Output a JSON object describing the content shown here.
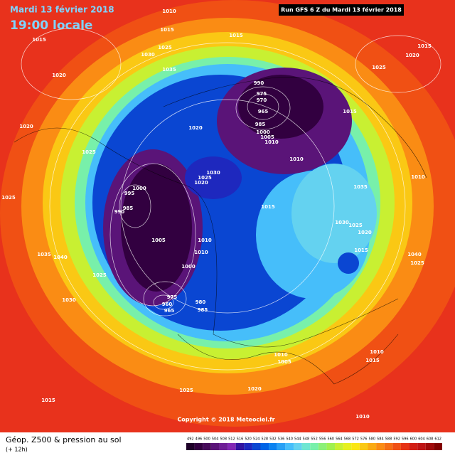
{
  "header": {
    "date": "Mardi 13 février 2018",
    "time": "19:00 locale",
    "run": "Run GFS 6 Z du Mardi 13 février 2018"
  },
  "footer": {
    "title": "Géop. Z500 & pression au sol",
    "subtitle": "(+ 12h)",
    "copyright": "Copyright © 2018 Meteociel.fr"
  },
  "legend": {
    "values": [
      492,
      496,
      500,
      504,
      508,
      512,
      516,
      520,
      524,
      528,
      532,
      536,
      540,
      544,
      548,
      552,
      556,
      560,
      564,
      568,
      572,
      576,
      580,
      584,
      588,
      592,
      596,
      600,
      604,
      608,
      612
    ],
    "colors": [
      "#1e0028",
      "#320040",
      "#460a5a",
      "#5a1478",
      "#6e1e96",
      "#8228b4",
      "#3214a0",
      "#1e28be",
      "#0a46d2",
      "#0064e6",
      "#0a82f0",
      "#28a0f5",
      "#46befa",
      "#64d2f0",
      "#6ee6d2",
      "#78f0aa",
      "#8cf078",
      "#a0f050",
      "#c8f032",
      "#e6f01e",
      "#fae614",
      "#fac814",
      "#faaa14",
      "#fa8c14",
      "#f56e14",
      "#f05014",
      "#e63214",
      "#d21e14",
      "#be1414",
      "#a00a0a",
      "#820000"
    ]
  },
  "isobar_labels": [
    "1010",
    "1015",
    "1025",
    "1030",
    "1035",
    "1015",
    "1020",
    "1020",
    "1025",
    "1025",
    "1015",
    "1020",
    "1015",
    "1025",
    "1015",
    "990",
    "975",
    "970",
    "965",
    "985",
    "1000",
    "1005",
    "1010",
    "1020",
    "1010",
    "1030",
    "1025",
    "1020",
    "1000",
    "995",
    "985",
    "990",
    "1005",
    "1010",
    "1010",
    "1000",
    "1015",
    "1035",
    "1010",
    "1030",
    "1025",
    "1020",
    "1015",
    "1040",
    "1025",
    "1035",
    "1040",
    "1025",
    "1030",
    "975",
    "960",
    "965",
    "980",
    "985",
    "1010",
    "1005",
    "1010",
    "1015",
    "1025",
    "1020",
    "1015",
    "1010"
  ]
}
